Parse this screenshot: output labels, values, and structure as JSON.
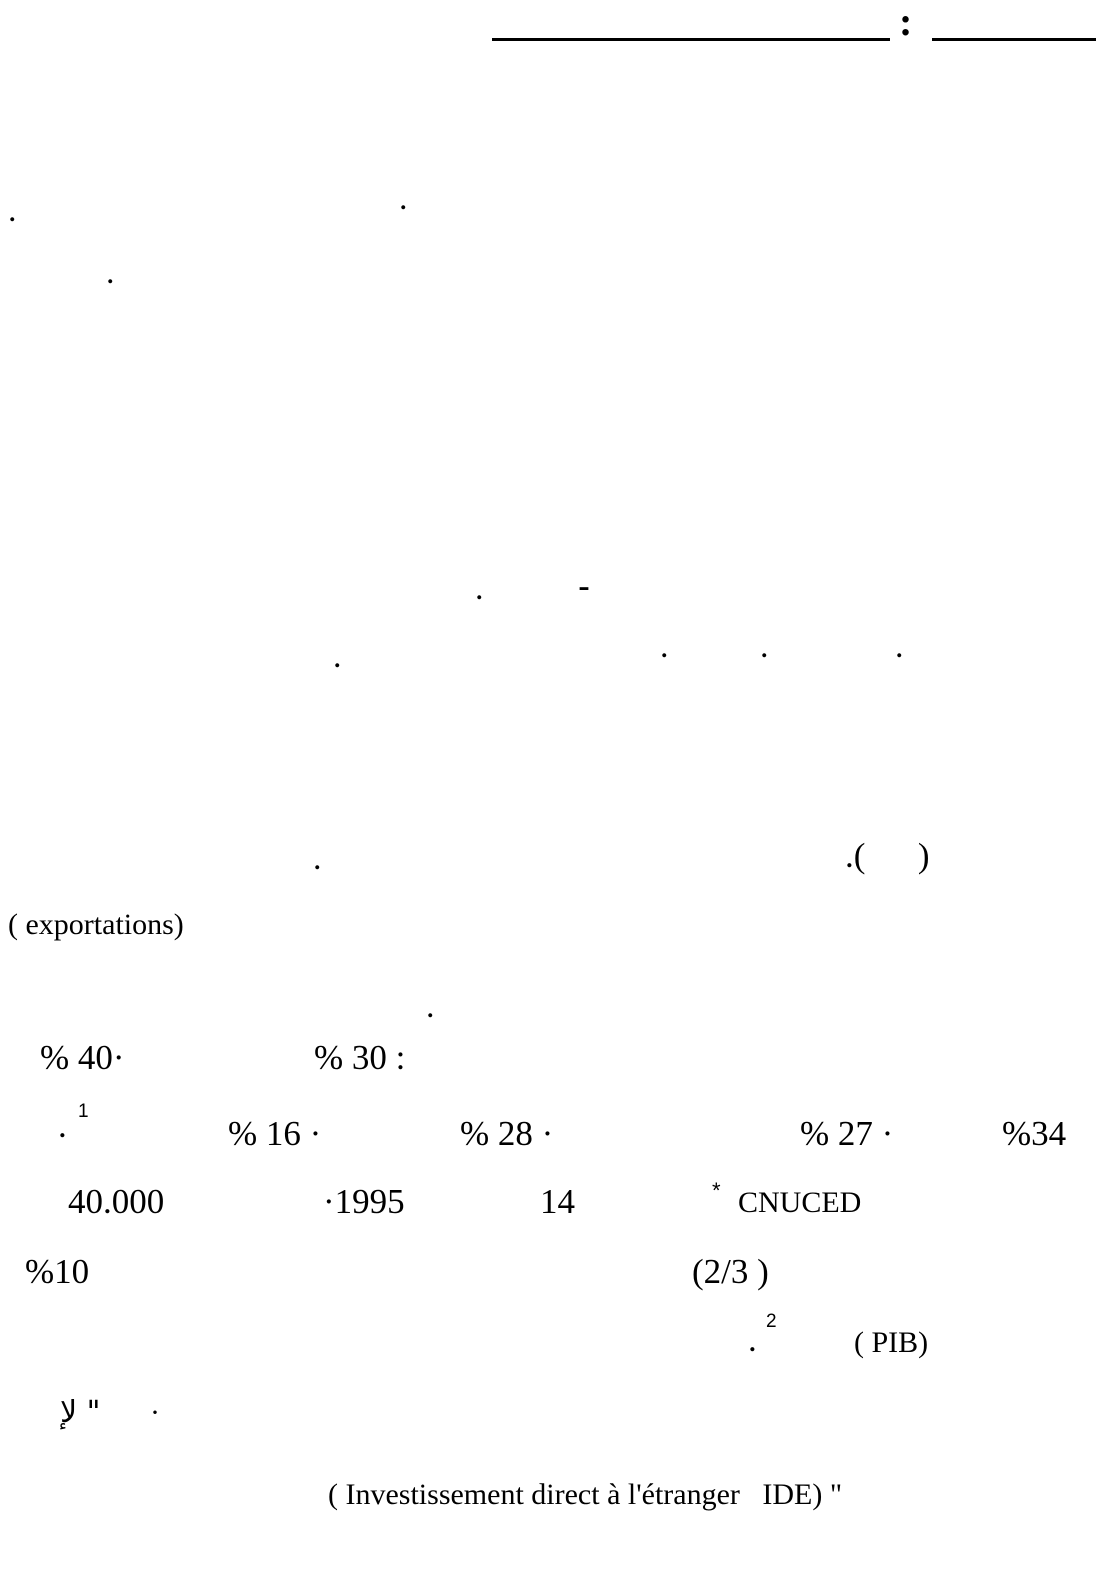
{
  "header": {
    "colon": ":"
  },
  "fragments": {
    "p1_dot_a": ".",
    "p1_dot_b": ".",
    "p1_dot_c": ".",
    "p2_dash": "-",
    "p2_dot_a": ".",
    "p2_dot_b": ".",
    "p2_dot_c": ".",
    "p2_dot_d": ".",
    "p2_dot_e": ".",
    "p3_paren": ".(      )",
    "p3_dot": ".",
    "exportations": "( exportations)",
    "p4_dot": ".",
    "pct_40": "% 40·",
    "pct_30": "% 30 :",
    "fn1_dot": ".",
    "fn1_num": "1",
    "pct_16": "% 16 ·",
    "pct_28": "% 28 ·",
    "pct_27": "% 27 ·",
    "pct_34": "%34",
    "num_40000": "40.000",
    "year_1995": "·1995",
    "num_14": "14",
    "asterisk": "*",
    "cnuced": "CNUCED",
    "pct_10": "%10",
    "frac": "(2/3 )",
    "fn2_dot": ".",
    "fn2_num": "2",
    "pib": "( PIB)",
    "la_quote": "لإ \"",
    "dot_small": "·",
    "ide": "( Investissement direct à l'étranger   IDE) \""
  }
}
